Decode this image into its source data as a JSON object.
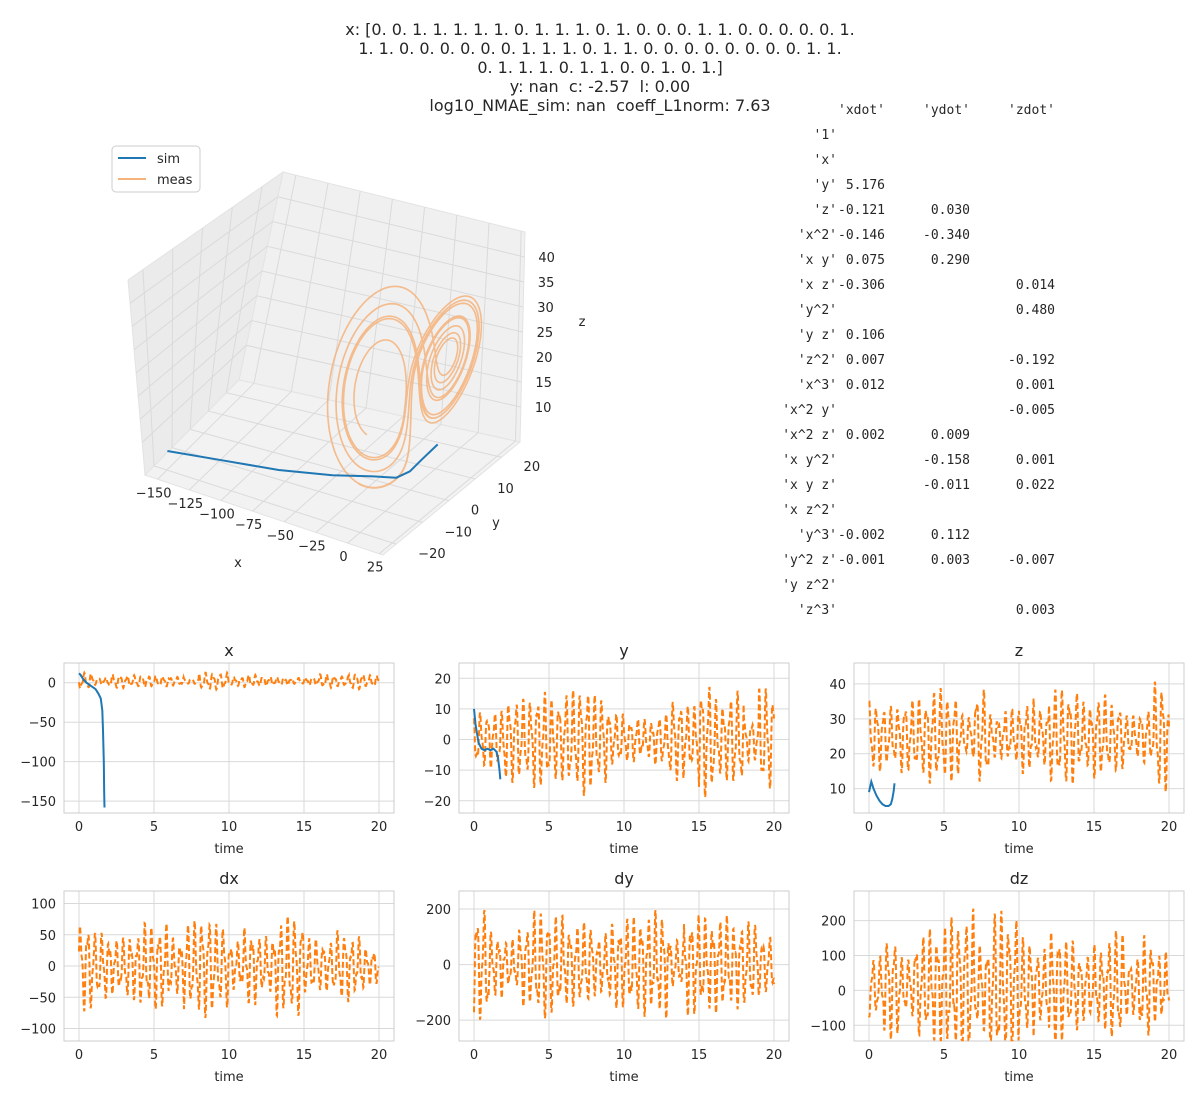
{
  "title": {
    "lines": [
      "x: [0. 0. 1. 1. 1. 1. 1. 0. 1. 1. 1. 0. 1. 0. 0. 0. 1. 1. 0. 0. 0. 0. 0. 1.",
      "1. 1. 0. 0. 0. 0. 0. 0. 1. 1. 1. 0. 1. 1. 0. 0. 0. 0. 0. 0. 0. 0. 1. 1.",
      "0. 1. 1. 1. 0. 1. 1. 0. 0. 1. 0. 1.]",
      "y: nan  c: -2.57  l: 0.00",
      "log10_NMAE_sim: nan  coeff_L1norm: 7.63"
    ]
  },
  "coefficients": {
    "columns": [
      "'xdot'",
      "'ydot'",
      "'zdot'"
    ],
    "rows": [
      {
        "term": "'1'",
        "values": [
          "",
          "",
          ""
        ]
      },
      {
        "term": "'x'",
        "values": [
          "",
          "",
          ""
        ]
      },
      {
        "term": "'y'",
        "values": [
          "5.176",
          "",
          ""
        ]
      },
      {
        "term": "'z'",
        "values": [
          "-0.121",
          "0.030",
          ""
        ]
      },
      {
        "term": "'x^2'",
        "values": [
          "-0.146",
          "-0.340",
          ""
        ]
      },
      {
        "term": "'x y'",
        "values": [
          "0.075",
          "0.290",
          ""
        ]
      },
      {
        "term": "'x z'",
        "values": [
          "-0.306",
          "",
          "0.014"
        ]
      },
      {
        "term": "'y^2'",
        "values": [
          "",
          "",
          "0.480"
        ]
      },
      {
        "term": "'y z'",
        "values": [
          "0.106",
          "",
          ""
        ]
      },
      {
        "term": "'z^2'",
        "values": [
          "0.007",
          "",
          "-0.192"
        ]
      },
      {
        "term": "'x^3'",
        "values": [
          "0.012",
          "",
          "0.001"
        ]
      },
      {
        "term": "'x^2 y'",
        "values": [
          "",
          "",
          "-0.005"
        ]
      },
      {
        "term": "'x^2 z'",
        "values": [
          "0.002",
          "0.009",
          ""
        ]
      },
      {
        "term": "'x y^2'",
        "values": [
          "",
          "-0.158",
          "0.001"
        ]
      },
      {
        "term": "'x y z'",
        "values": [
          "",
          "-0.011",
          "0.022"
        ]
      },
      {
        "term": "'x z^2'",
        "values": [
          "",
          "",
          ""
        ]
      },
      {
        "term": "'y^3'",
        "values": [
          "-0.002",
          "0.112",
          ""
        ]
      },
      {
        "term": "'y^2 z'",
        "values": [
          "-0.001",
          "0.003",
          "-0.007"
        ]
      },
      {
        "term": "'y z^2'",
        "values": [
          "",
          "",
          ""
        ]
      },
      {
        "term": "'z^3'",
        "values": [
          "",
          "",
          "0.003"
        ]
      }
    ]
  },
  "colors": {
    "sim": "#1f77b4",
    "meas": "#ff7f0e",
    "meas3d": "#f5b27a",
    "grid": "#d9d9d9"
  },
  "chart_data": [
    {
      "type": "line3d",
      "legend": [
        "sim",
        "meas"
      ],
      "legend_position": "upper-left",
      "xlabel": "x",
      "ylabel": "y",
      "zlabel": "z",
      "xticks": [
        "−150",
        "−125",
        "−100",
        "−75",
        "−50",
        "−25",
        "0",
        "25"
      ],
      "yticks": [
        "−20",
        "−10",
        "0",
        "10",
        "20"
      ],
      "zticks": [
        "10",
        "15",
        "20",
        "25",
        "30",
        "35",
        "40"
      ],
      "xlim": [
        -160,
        28
      ],
      "ylim": [
        -25,
        27
      ],
      "zlim": [
        3,
        45
      ],
      "sim_points": [
        [
          -158,
          -14,
          4
        ],
        [
          -120,
          -12,
          4.5
        ],
        [
          -80,
          -10,
          5
        ],
        [
          -45,
          -7,
          5.5
        ],
        [
          -20,
          -4,
          6
        ],
        [
          -5,
          -3,
          6.5
        ],
        [
          3,
          -2,
          8
        ],
        [
          8,
          0,
          10
        ],
        [
          10,
          5,
          11
        ]
      ],
      "meas_description": "Lorenz attractor, two lobes near x=±8, z 5–45"
    },
    {
      "type": "line",
      "title": "x",
      "xlabel": "time",
      "xticks": [
        "0",
        "5",
        "10",
        "15",
        "20"
      ],
      "yticks": [
        "0",
        "−50",
        "−100",
        "−150"
      ],
      "xlim": [
        -1,
        21
      ],
      "ylim": [
        -165,
        25
      ],
      "sim": {
        "t": [
          0,
          0.1,
          0.3,
          0.5,
          0.8,
          1.1,
          1.3,
          1.45,
          1.55,
          1.6,
          1.65,
          1.68,
          1.7
        ],
        "v": [
          12,
          10,
          4,
          0,
          -4,
          -8,
          -14,
          -20,
          -35,
          -60,
          -100,
          -140,
          -158
        ]
      },
      "meas": {
        "amp": 11,
        "offset": 2,
        "seed": 1
      }
    },
    {
      "type": "line",
      "title": "y",
      "xlabel": "time",
      "xticks": [
        "0",
        "5",
        "10",
        "15",
        "20"
      ],
      "yticks": [
        "20",
        "10",
        "0",
        "−10",
        "−20"
      ],
      "xlim": [
        -1,
        21
      ],
      "ylim": [
        -24,
        25
      ],
      "sim": {
        "t": [
          0,
          0.1,
          0.2,
          0.3,
          0.5,
          0.7,
          0.9,
          1.1,
          1.3,
          1.5,
          1.6,
          1.7,
          1.75
        ],
        "v": [
          10,
          5,
          2,
          -1,
          -3,
          -3.5,
          -3,
          -3.5,
          -3,
          -4,
          -6,
          -10,
          -13
        ]
      },
      "meas": {
        "amp": 20,
        "offset": 0,
        "seed": 2
      }
    },
    {
      "type": "line",
      "title": "z",
      "xlabel": "time",
      "xticks": [
        "0",
        "5",
        "10",
        "15",
        "20"
      ],
      "yticks": [
        "40",
        "30",
        "20",
        "10"
      ],
      "xlim": [
        -1,
        21
      ],
      "ylim": [
        3,
        46
      ],
      "sim": {
        "t": [
          0,
          0.15,
          0.3,
          0.5,
          0.7,
          0.9,
          1.1,
          1.3,
          1.45,
          1.55,
          1.65,
          1.7
        ],
        "v": [
          9,
          12,
          10,
          8,
          6.5,
          5.5,
          5,
          5,
          5.5,
          7,
          9.5,
          11.5
        ]
      },
      "meas": {
        "amp": 17,
        "offset": 25,
        "seed": 3
      }
    },
    {
      "type": "line",
      "title": "dx",
      "xlabel": "time",
      "xticks": [
        "0",
        "5",
        "10",
        "15",
        "20"
      ],
      "yticks": [
        "100",
        "50",
        "0",
        "−50",
        "−100"
      ],
      "xlim": [
        -1,
        21
      ],
      "ylim": [
        -120,
        120
      ],
      "meas": {
        "amp": 100,
        "offset": 0,
        "seed": 4
      }
    },
    {
      "type": "line",
      "title": "dy",
      "xlabel": "time",
      "xticks": [
        "0",
        "5",
        "10",
        "15",
        "20"
      ],
      "yticks": [
        "200",
        "0",
        "−200"
      ],
      "xlim": [
        -1,
        21
      ],
      "ylim": [
        -275,
        265
      ],
      "meas": {
        "amp": 240,
        "offset": 0,
        "seed": 5
      }
    },
    {
      "type": "line",
      "title": "dz",
      "xlabel": "time",
      "xticks": [
        "0",
        "5",
        "10",
        "15",
        "20"
      ],
      "yticks": [
        "200",
        "100",
        "0",
        "−100"
      ],
      "xlim": [
        -1,
        21
      ],
      "ylim": [
        -145,
        285
      ],
      "meas": {
        "amp": 240,
        "offset": 10,
        "seed": 6
      }
    }
  ]
}
